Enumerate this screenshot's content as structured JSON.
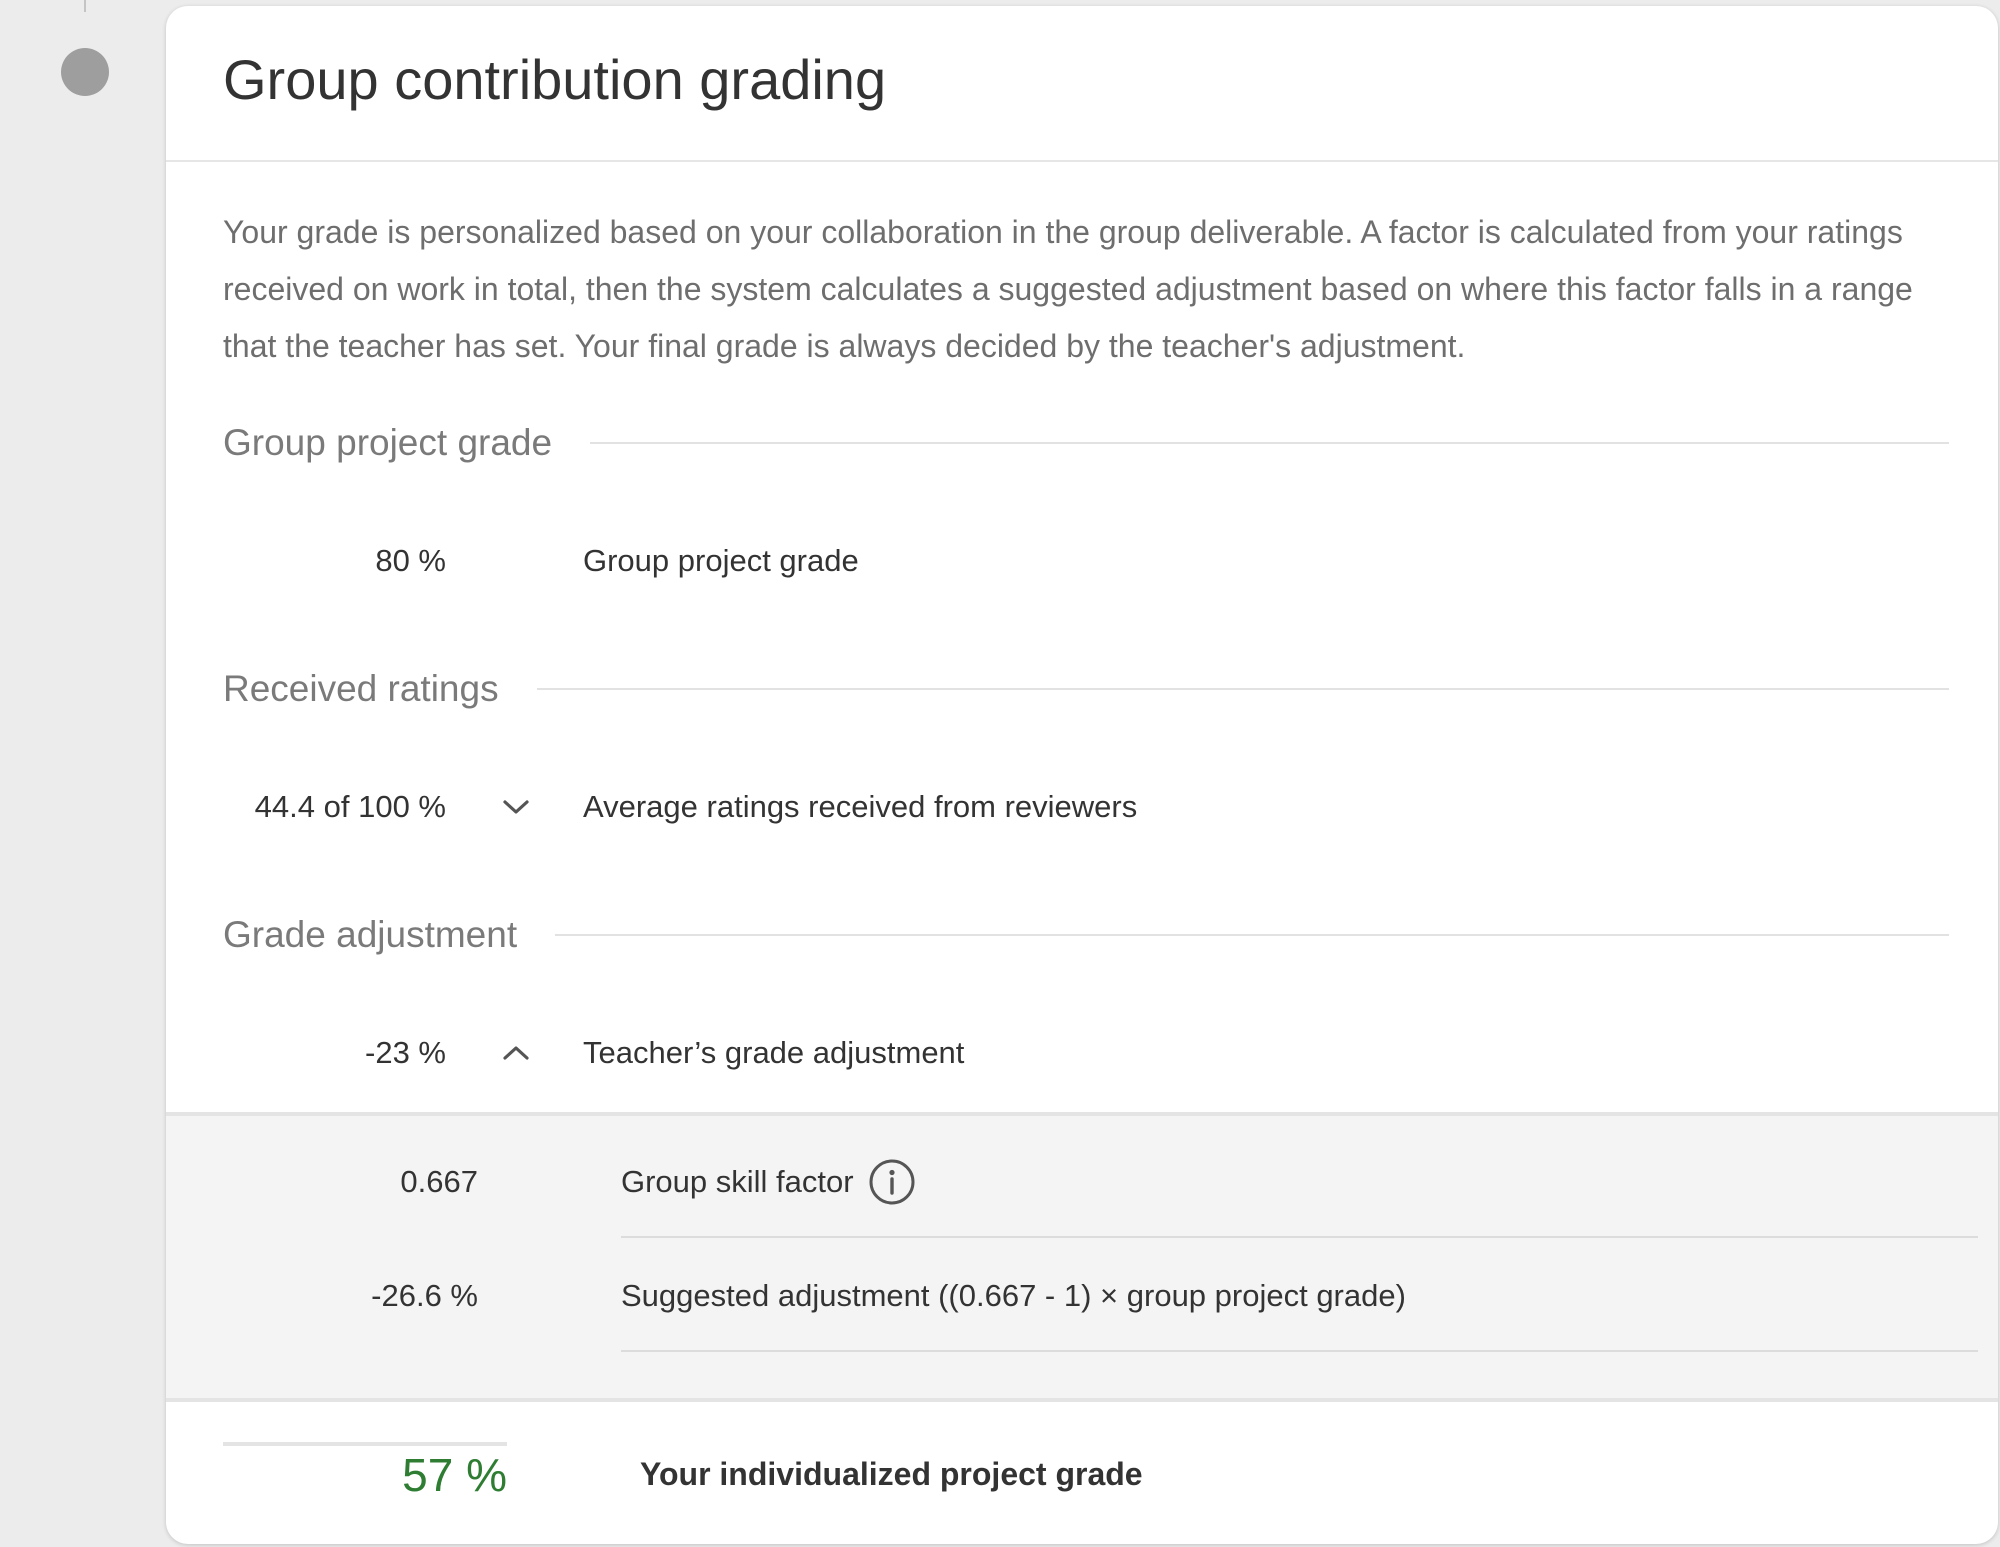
{
  "card": {
    "title": "Group contribution grading",
    "description": "Your grade is personalized based on your collaboration in the group deliverable. A factor is calculated from your ratings received on work in total, then the system calculates a suggested adjustment based on where this factor falls in a range that the teacher has set. Your final grade is always decided by the teacher's adjustment."
  },
  "sections": {
    "group_project": {
      "heading": "Group project grade",
      "value": "80 %",
      "label": "Group project grade"
    },
    "received_ratings": {
      "heading": "Received ratings",
      "value": "44.4 of 100 %",
      "label": "Average ratings received from reviewers",
      "toggle_icon": "chevron-down-icon"
    },
    "grade_adjustment": {
      "heading": "Grade adjustment",
      "value": "-23 %",
      "label": "Teacher’s grade adjustment",
      "toggle_icon": "chevron-up-icon"
    }
  },
  "details": {
    "skill_factor": {
      "value": "0.667",
      "label": "Group skill factor",
      "icon": "info-icon"
    },
    "suggested_adjustment": {
      "value": "-26.6 %",
      "label": "Suggested adjustment ((0.667 - 1) × group project grade)"
    }
  },
  "total": {
    "value": "57 %",
    "label": "Your individualized project grade",
    "value_color": "#2e7d32"
  },
  "colors": {
    "timeline_dot": "#9e9e9e",
    "details_background": "#f4f4f4"
  }
}
